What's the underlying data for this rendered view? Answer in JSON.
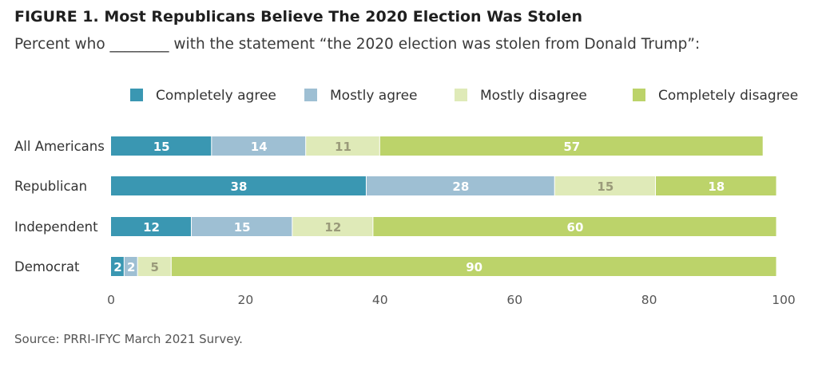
{
  "figure": {
    "title": "FIGURE 1.  Most Republicans Believe The 2020 Election Was Stolen",
    "subtitle": "Percent who ________ with the statement “the 2020 election was stolen from Donald Trump”:",
    "source": "Source: PRRI-IFYC March 2021 Survey."
  },
  "chart_data": {
    "type": "bar",
    "orientation": "horizontal",
    "stacked": true,
    "title": "Most Republicans Believe The 2020 Election Was Stolen",
    "subtitle": "Percent who ________ with the statement “the 2020 election was stolen from Donald Trump”:",
    "categories": [
      "All Americans",
      "Republican",
      "Independent",
      "Democrat"
    ],
    "series": [
      {
        "name": "Completely agree",
        "color": "#3a97b2",
        "label_color": "#ffffff",
        "values": [
          15,
          38,
          12,
          2
        ]
      },
      {
        "name": "Mostly agree",
        "color": "#9ebfd3",
        "label_color": "#ffffff",
        "values": [
          14,
          28,
          15,
          2
        ]
      },
      {
        "name": "Mostly disagree",
        "color": "#dfeab8",
        "label_color": "#9a9a7a",
        "values": [
          11,
          15,
          12,
          5
        ]
      },
      {
        "name": "Completely disagree",
        "color": "#bcd36a",
        "label_color": "#ffffff",
        "values": [
          57,
          18,
          60,
          90
        ]
      }
    ],
    "xlim": [
      0,
      100
    ],
    "xticks": [
      0,
      20,
      40,
      60,
      80,
      100
    ],
    "xlabel": "",
    "ylabel": "",
    "legend_position": "top",
    "grid": false
  }
}
